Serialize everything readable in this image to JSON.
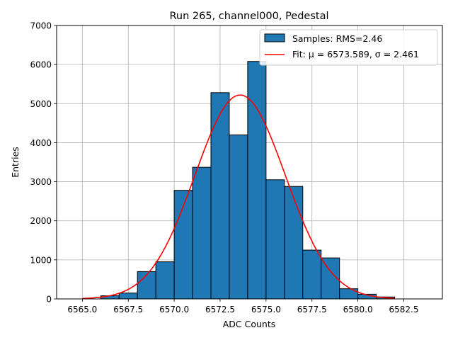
{
  "chart_data": {
    "type": "bar",
    "title": "Run 265, channel000, Pedestal",
    "xlabel": "ADC Counts",
    "ylabel": "Entries",
    "xlim": [
      6563.6,
      6584.6
    ],
    "ylim": [
      0,
      7000
    ],
    "xticks": [
      6565.0,
      6567.5,
      6570.0,
      6572.5,
      6575.0,
      6577.5,
      6580.0,
      6582.5
    ],
    "xtick_labels": [
      "6565.0",
      "6567.5",
      "6570.0",
      "6572.5",
      "6575.0",
      "6577.5",
      "6580.0",
      "6582.5"
    ],
    "yticks": [
      0,
      1000,
      2000,
      3000,
      4000,
      5000,
      6000,
      7000
    ],
    "ytick_labels": [
      "0",
      "1000",
      "2000",
      "3000",
      "4000",
      "5000",
      "6000",
      "7000"
    ],
    "grid": true,
    "legend": {
      "placement": "top-right"
    },
    "series": [
      {
        "name": "Samples: RMS=2.46",
        "kind": "histogram",
        "color": "#1f77b4",
        "edge_color": "#000000",
        "bin_edges": [
          6564.0,
          6565.0,
          6566.0,
          6567.0,
          6568.0,
          6569.0,
          6570.0,
          6571.0,
          6572.0,
          6573.0,
          6574.0,
          6575.0,
          6576.0,
          6577.0,
          6578.0,
          6579.0,
          6580.0,
          6581.0,
          6582.0,
          6583.0,
          6584.0
        ],
        "counts": [
          0,
          0,
          80,
          150,
          700,
          950,
          2780,
          3370,
          5280,
          4200,
          6080,
          3050,
          2880,
          1250,
          1050,
          260,
          120,
          50,
          0,
          0
        ]
      },
      {
        "name": "Fit: μ = 6573.589, σ = 2.461",
        "kind": "gaussian",
        "color": "#ff0000",
        "mu": 6573.589,
        "sigma": 2.461,
        "amplitude": 5220,
        "x_range": [
          6565.0,
          6582.0
        ]
      }
    ]
  }
}
